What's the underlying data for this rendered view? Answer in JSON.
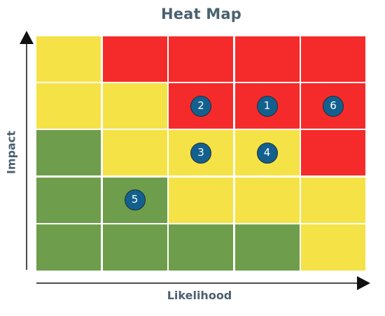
{
  "title": "Heat Map",
  "x_axis_label": "Likelihood",
  "y_axis_label": "Impact",
  "colors": {
    "red": "#f52b2b",
    "yellow": "#f5e246",
    "green": "#6e9e4c",
    "marker": "#13608e",
    "text": "#4a6170"
  },
  "grid": {
    "rows": [
      [
        "yellow",
        "red",
        "red",
        "red",
        "red"
      ],
      [
        "yellow",
        "yellow",
        "red",
        "red",
        "red"
      ],
      [
        "green",
        "yellow",
        "yellow",
        "yellow",
        "red"
      ],
      [
        "green",
        "green",
        "yellow",
        "yellow",
        "yellow"
      ],
      [
        "green",
        "green",
        "green",
        "green",
        "yellow"
      ]
    ]
  },
  "markers": [
    {
      "label": "2",
      "row": 1,
      "col": 2
    },
    {
      "label": "1",
      "row": 1,
      "col": 3
    },
    {
      "label": "6",
      "row": 1,
      "col": 4
    },
    {
      "label": "3",
      "row": 2,
      "col": 2
    },
    {
      "label": "4",
      "row": 2,
      "col": 3
    },
    {
      "label": "5",
      "row": 3,
      "col": 1
    }
  ]
}
